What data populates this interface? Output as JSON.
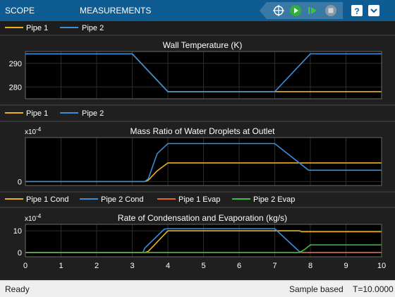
{
  "toolbar": {
    "tabs": [
      "SCOPE",
      "MEASUREMENTS"
    ],
    "icons": [
      "cursor-icon",
      "run-icon",
      "step-forward-icon",
      "stop-icon",
      "help-icon",
      "expand-icon"
    ]
  },
  "status": {
    "left": "Ready",
    "mode": "Sample based",
    "time": "T=10.0000"
  },
  "colors": {
    "yellow": "#edb120",
    "blue": "#3a8ed8",
    "orange": "#e8662c",
    "green": "#3fbf3f",
    "toolbar": "#0f5c93"
  },
  "chart_data": [
    {
      "type": "line",
      "title": "Wall Temperature (K)",
      "legend": [
        "Pipe 1",
        "Pipe 2"
      ],
      "xlim": [
        0,
        10
      ],
      "ylim": [
        275,
        295
      ],
      "yticks": [
        280,
        290
      ],
      "series": [
        {
          "name": "Pipe 1",
          "color": "#edb120",
          "x": [
            0,
            3,
            4,
            7,
            10
          ],
          "y": [
            294,
            294,
            278,
            278,
            278
          ]
        },
        {
          "name": "Pipe 2",
          "color": "#3a8ed8",
          "x": [
            0,
            3,
            4,
            7,
            8,
            10
          ],
          "y": [
            294,
            294,
            278,
            278,
            294,
            294
          ]
        }
      ]
    },
    {
      "type": "line",
      "title": "Mass Ratio of Water Droplets at Outlet",
      "exponent": "x10",
      "exponent_power": "-4",
      "legend": [
        "Pipe 1",
        "Pipe 2"
      ],
      "xlim": [
        0,
        10
      ],
      "ylim": [
        -0.3,
        3.3
      ],
      "yticks": [
        0
      ],
      "series": [
        {
          "name": "Pipe 1",
          "color": "#edb120",
          "x": [
            0,
            3.35,
            3.45,
            3.7,
            4,
            7.9,
            10
          ],
          "y": [
            0,
            0,
            0.1,
            0.8,
            1.4,
            1.4,
            1.4
          ]
        },
        {
          "name": "Pipe 2",
          "color": "#3a8ed8",
          "x": [
            0,
            3.35,
            3.45,
            3.7,
            4,
            7,
            7.95,
            8.1,
            10
          ],
          "y": [
            0,
            0,
            0.2,
            2.1,
            2.85,
            2.85,
            0.85,
            0.85,
            0.85
          ]
        }
      ]
    },
    {
      "type": "line",
      "title": "Rate of Condensation and Evaporation (kg/s)",
      "exponent": "x10",
      "exponent_power": "-4",
      "legend": [
        "Pipe 1 Cond",
        "Pipe 2 Cond",
        "Pipe 1 Evap",
        "Pipe 2 Evap"
      ],
      "xlim": [
        0,
        10
      ],
      "ylim": [
        -2,
        13
      ],
      "yticks": [
        0,
        10
      ],
      "xticks": [
        0,
        1,
        2,
        3,
        4,
        5,
        6,
        7,
        8,
        9,
        10
      ],
      "series": [
        {
          "name": "Pipe 1 Cond",
          "color": "#edb120",
          "x": [
            0,
            3.35,
            3.45,
            4,
            7,
            7.7,
            7.75,
            10
          ],
          "y": [
            0,
            0,
            0.5,
            10,
            10,
            10,
            9.6,
            9.6
          ]
        },
        {
          "name": "Pipe 2 Cond",
          "color": "#3a8ed8",
          "x": [
            0,
            3.3,
            3.35,
            3.9,
            4,
            7,
            7.7,
            7.8,
            10
          ],
          "y": [
            0,
            0,
            2,
            10.8,
            11,
            11,
            0.3,
            0,
            0
          ]
        },
        {
          "name": "Pipe 1 Evap",
          "color": "#e8662c",
          "x": [
            0,
            7.8,
            8,
            10
          ],
          "y": [
            0,
            0,
            0,
            0
          ]
        },
        {
          "name": "Pipe 2 Evap",
          "color": "#3fbf3f",
          "x": [
            0,
            7.7,
            7.85,
            8,
            10
          ],
          "y": [
            0,
            0,
            1.5,
            3.5,
            3.5
          ]
        }
      ]
    }
  ]
}
